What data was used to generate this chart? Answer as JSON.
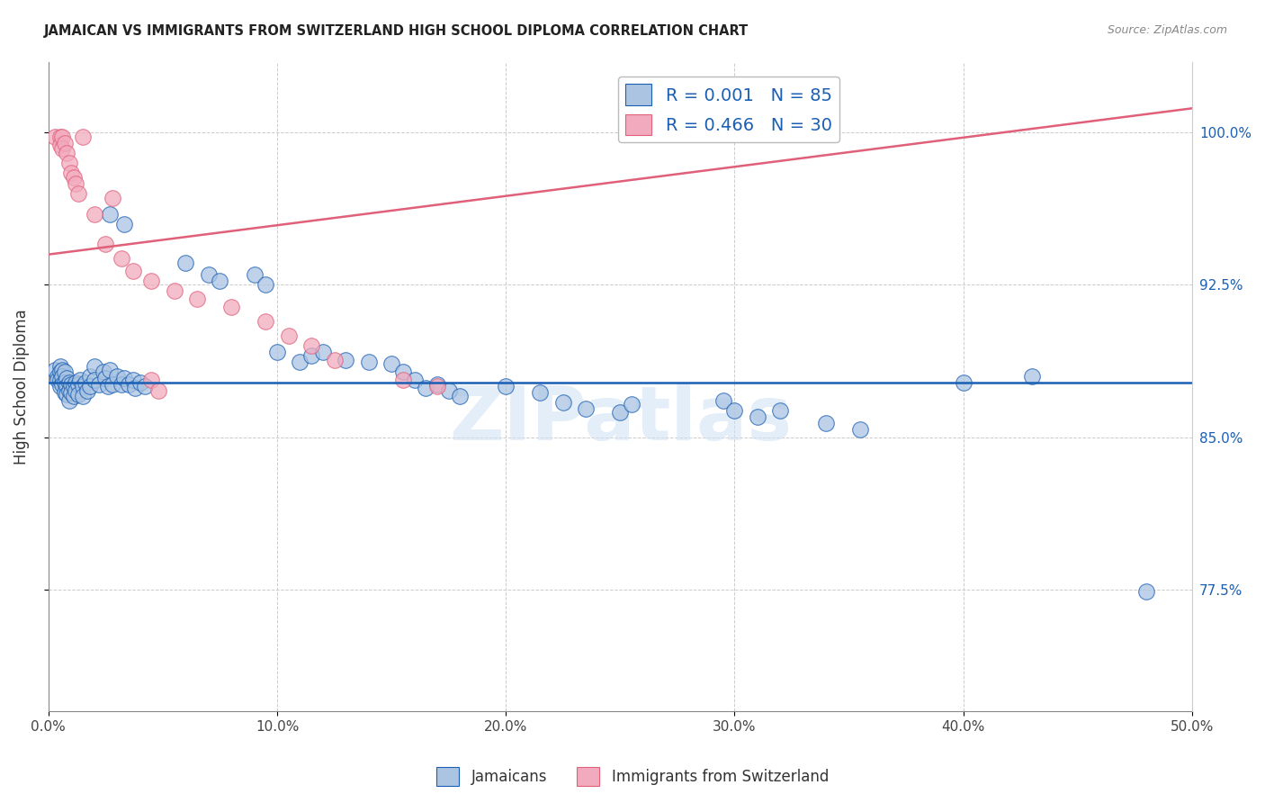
{
  "title": "JAMAICAN VS IMMIGRANTS FROM SWITZERLAND HIGH SCHOOL DIPLOMA CORRELATION CHART",
  "source": "Source: ZipAtlas.com",
  "ylabel": "High School Diploma",
  "ytick_labels": [
    "77.5%",
    "85.0%",
    "92.5%",
    "100.0%"
  ],
  "ytick_values": [
    0.775,
    0.85,
    0.925,
    1.0
  ],
  "xlim": [
    0.0,
    0.5
  ],
  "ylim": [
    0.715,
    1.035
  ],
  "legend_blue_text": "R = 0.001   N = 85",
  "legend_pink_text": "R = 0.466   N = 30",
  "blue_color": "#aac4e2",
  "pink_color": "#f2abbe",
  "line_blue_color": "#1a5fb4",
  "line_pink_color": "#e0607a",
  "watermark": "ZIPatlas",
  "blue_scatter": [
    [
      0.003,
      0.883
    ],
    [
      0.004,
      0.88
    ],
    [
      0.004,
      0.878
    ],
    [
      0.005,
      0.885
    ],
    [
      0.005,
      0.882
    ],
    [
      0.005,
      0.878
    ],
    [
      0.005,
      0.875
    ],
    [
      0.006,
      0.883
    ],
    [
      0.006,
      0.88
    ],
    [
      0.006,
      0.876
    ],
    [
      0.007,
      0.882
    ],
    [
      0.007,
      0.877
    ],
    [
      0.007,
      0.872
    ],
    [
      0.008,
      0.879
    ],
    [
      0.008,
      0.875
    ],
    [
      0.008,
      0.871
    ],
    [
      0.009,
      0.877
    ],
    [
      0.009,
      0.873
    ],
    [
      0.009,
      0.868
    ],
    [
      0.01,
      0.876
    ],
    [
      0.01,
      0.872
    ],
    [
      0.011,
      0.875
    ],
    [
      0.011,
      0.87
    ],
    [
      0.012,
      0.877
    ],
    [
      0.012,
      0.873
    ],
    [
      0.013,
      0.876
    ],
    [
      0.013,
      0.871
    ],
    [
      0.014,
      0.878
    ],
    [
      0.015,
      0.875
    ],
    [
      0.015,
      0.87
    ],
    [
      0.016,
      0.877
    ],
    [
      0.017,
      0.873
    ],
    [
      0.018,
      0.88
    ],
    [
      0.018,
      0.875
    ],
    [
      0.02,
      0.885
    ],
    [
      0.02,
      0.878
    ],
    [
      0.022,
      0.876
    ],
    [
      0.024,
      0.882
    ],
    [
      0.025,
      0.879
    ],
    [
      0.026,
      0.875
    ],
    [
      0.027,
      0.883
    ],
    [
      0.028,
      0.876
    ],
    [
      0.03,
      0.88
    ],
    [
      0.032,
      0.876
    ],
    [
      0.033,
      0.879
    ],
    [
      0.035,
      0.876
    ],
    [
      0.037,
      0.878
    ],
    [
      0.038,
      0.874
    ],
    [
      0.04,
      0.877
    ],
    [
      0.042,
      0.875
    ],
    [
      0.027,
      0.96
    ],
    [
      0.033,
      0.955
    ],
    [
      0.06,
      0.936
    ],
    [
      0.07,
      0.93
    ],
    [
      0.075,
      0.927
    ],
    [
      0.09,
      0.93
    ],
    [
      0.095,
      0.925
    ],
    [
      0.1,
      0.892
    ],
    [
      0.11,
      0.887
    ],
    [
      0.115,
      0.89
    ],
    [
      0.12,
      0.892
    ],
    [
      0.13,
      0.888
    ],
    [
      0.14,
      0.887
    ],
    [
      0.15,
      0.886
    ],
    [
      0.155,
      0.882
    ],
    [
      0.16,
      0.878
    ],
    [
      0.165,
      0.874
    ],
    [
      0.17,
      0.876
    ],
    [
      0.175,
      0.873
    ],
    [
      0.18,
      0.87
    ],
    [
      0.2,
      0.875
    ],
    [
      0.215,
      0.872
    ],
    [
      0.225,
      0.867
    ],
    [
      0.235,
      0.864
    ],
    [
      0.25,
      0.862
    ],
    [
      0.255,
      0.866
    ],
    [
      0.295,
      0.868
    ],
    [
      0.3,
      0.863
    ],
    [
      0.31,
      0.86
    ],
    [
      0.32,
      0.863
    ],
    [
      0.34,
      0.857
    ],
    [
      0.355,
      0.854
    ],
    [
      0.4,
      0.877
    ],
    [
      0.43,
      0.88
    ],
    [
      0.48,
      0.774
    ]
  ],
  "pink_scatter": [
    [
      0.003,
      0.998
    ],
    [
      0.005,
      0.998
    ],
    [
      0.005,
      0.994
    ],
    [
      0.006,
      0.998
    ],
    [
      0.006,
      0.992
    ],
    [
      0.007,
      0.995
    ],
    [
      0.008,
      0.99
    ],
    [
      0.009,
      0.985
    ],
    [
      0.01,
      0.98
    ],
    [
      0.011,
      0.978
    ],
    [
      0.012,
      0.975
    ],
    [
      0.013,
      0.97
    ],
    [
      0.015,
      0.998
    ],
    [
      0.02,
      0.96
    ],
    [
      0.025,
      0.945
    ],
    [
      0.028,
      0.968
    ],
    [
      0.032,
      0.938
    ],
    [
      0.037,
      0.932
    ],
    [
      0.045,
      0.927
    ],
    [
      0.055,
      0.922
    ],
    [
      0.065,
      0.918
    ],
    [
      0.08,
      0.914
    ],
    [
      0.095,
      0.907
    ],
    [
      0.105,
      0.9
    ],
    [
      0.115,
      0.895
    ],
    [
      0.125,
      0.888
    ],
    [
      0.155,
      0.878
    ],
    [
      0.17,
      0.875
    ],
    [
      0.045,
      0.878
    ],
    [
      0.048,
      0.873
    ]
  ],
  "blue_hline_y": 0.877,
  "pink_line": {
    "x0": 0.0,
    "y0": 0.94,
    "x1": 0.5,
    "y1": 1.012
  }
}
